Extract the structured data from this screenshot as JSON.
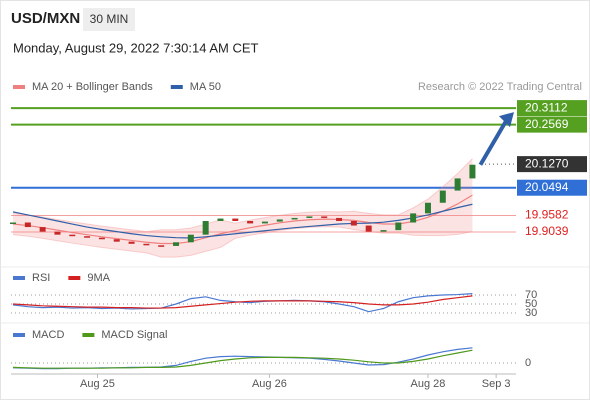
{
  "header": {
    "symbol": "USD/MXN",
    "interval": "30 MIN",
    "timestamp": "Monday, August 29, 2022 7:30:14 AM CET"
  },
  "chart_data": [
    {
      "type": "candlestick",
      "credit": "Research © 2022 Trading Central",
      "xlim": [
        0,
        33.4
      ],
      "ylim": [
        19.815,
        20.351
      ],
      "up_color": "#2e7d32",
      "down_color": "#c62828",
      "values": [
        19.935,
        19.92,
        19.905,
        19.895,
        19.89,
        19.885,
        19.88,
        19.872,
        19.865,
        19.86,
        19.858,
        19.87,
        19.895,
        19.94,
        19.948,
        19.94,
        19.932,
        19.938,
        19.945,
        19.95,
        19.955,
        19.95,
        19.94,
        19.925,
        19.905,
        19.91,
        19.935,
        19.965,
        20.0,
        20.04,
        20.08,
        20.125
      ],
      "series": [
        {
          "name": "MA 20 + Bollinger Bands",
          "color": "#f08080",
          "values": [
            19.93,
            19.925,
            19.918,
            19.91,
            19.902,
            19.895,
            19.888,
            19.882,
            19.876,
            19.87,
            19.866,
            19.866,
            19.872,
            19.885,
            19.898,
            19.908,
            19.918,
            19.926,
            19.934,
            19.94,
            19.944,
            19.946,
            19.945,
            19.942,
            19.935,
            19.93,
            19.93,
            19.938,
            19.952,
            19.972,
            19.996,
            20.025
          ],
          "upper": [
            19.965,
            19.96,
            19.953,
            19.945,
            19.937,
            19.93,
            19.923,
            19.917,
            19.911,
            19.905,
            19.911,
            19.911,
            19.917,
            19.93,
            19.943,
            19.933,
            19.943,
            19.951,
            19.959,
            19.965,
            19.969,
            19.971,
            19.97,
            19.972,
            19.965,
            19.96,
            19.96,
            19.983,
            20.012,
            20.052,
            20.096,
            20.145
          ],
          "lower": [
            19.895,
            19.89,
            19.883,
            19.875,
            19.867,
            19.86,
            19.853,
            19.847,
            19.841,
            19.835,
            19.821,
            19.821,
            19.827,
            19.84,
            19.853,
            19.883,
            19.893,
            19.901,
            19.909,
            19.915,
            19.919,
            19.921,
            19.92,
            19.912,
            19.905,
            19.9,
            19.9,
            19.893,
            19.892,
            19.892,
            19.896,
            19.905
          ]
        },
        {
          "name": "MA 50",
          "color": "#2f5fa8",
          "values": [
            19.97,
            19.96,
            19.95,
            19.94,
            19.93,
            19.92,
            19.912,
            19.905,
            19.898,
            19.892,
            19.888,
            19.885,
            19.884,
            19.888,
            19.893,
            19.898,
            19.903,
            19.908,
            19.913,
            19.918,
            19.922,
            19.926,
            19.93,
            19.932,
            19.933,
            19.936,
            19.942,
            19.95,
            19.96,
            19.972,
            19.984,
            19.995
          ]
        }
      ],
      "levels": [
        {
          "value": 20.3112,
          "label": "20.3112",
          "color": "#55a020",
          "box": "#55a020",
          "style": "solid"
        },
        {
          "value": 20.2569,
          "label": "20.2569",
          "color": "#55a020",
          "box": "#55a020",
          "style": "solid"
        },
        {
          "value": 20.127,
          "label": "20.1270",
          "color": "#555555",
          "box": "#333333",
          "style": "dotted"
        },
        {
          "value": 20.0494,
          "label": "20.0494",
          "color": "#2f6fd6",
          "box": "#2f6fd6",
          "style": "solid"
        },
        {
          "value": 19.9582,
          "label": "19.9582",
          "color": "#f4a0a0",
          "box": null,
          "text_color": "#e02020",
          "style": "solid"
        },
        {
          "value": 19.9039,
          "label": "19.9039",
          "color": "#f4a0a0",
          "box": null,
          "text_color": "#e02020",
          "style": "solid"
        }
      ]
    },
    {
      "type": "line",
      "xlim": [
        0,
        33.4
      ],
      "ylim": [
        0,
        100
      ],
      "yticks": [
        70,
        50,
        30
      ],
      "series": [
        {
          "name": "RSI",
          "color": "#4a78d0",
          "values": [
            48,
            44,
            42,
            43,
            41,
            42,
            40,
            41,
            39,
            40,
            41,
            50,
            62,
            66,
            58,
            55,
            53,
            56,
            57,
            58,
            57,
            55,
            50,
            44,
            33,
            40,
            55,
            64,
            68,
            70,
            71,
            73
          ]
        },
        {
          "name": "9MA",
          "color": "#d42020",
          "values": [
            50,
            48,
            46,
            45,
            44,
            43,
            43,
            42,
            42,
            41,
            41,
            42,
            45,
            48,
            51,
            54,
            56,
            57,
            57,
            57,
            57,
            56,
            55,
            53,
            50,
            48,
            48,
            50,
            54,
            60,
            64,
            68
          ]
        }
      ]
    },
    {
      "type": "line",
      "xlim": [
        0,
        33.4
      ],
      "ylim": [
        -0.025,
        0.055
      ],
      "yticks": [
        0
      ],
      "xticks": [
        {
          "value": 5.7,
          "label": "Aug 25"
        },
        {
          "value": 17.3,
          "label": "Aug 26"
        },
        {
          "value": 28.0,
          "label": "Aug 28"
        },
        {
          "value": 32.6,
          "label": "Sep 3"
        }
      ],
      "series": [
        {
          "name": "MACD",
          "color": "#4a78d0",
          "values": [
            -0.012,
            -0.013,
            -0.014,
            -0.014,
            -0.013,
            -0.013,
            -0.012,
            -0.012,
            -0.011,
            -0.011,
            -0.01,
            -0.006,
            0.004,
            0.012,
            0.016,
            0.017,
            0.016,
            0.015,
            0.014,
            0.013,
            0.012,
            0.009,
            0.005,
            0.0,
            -0.005,
            -0.004,
            0.002,
            0.01,
            0.02,
            0.028,
            0.034,
            0.038
          ]
        },
        {
          "name": "MACD Signal",
          "color": "#4f9a1c",
          "values": [
            -0.011,
            -0.012,
            -0.013,
            -0.013,
            -0.013,
            -0.013,
            -0.013,
            -0.012,
            -0.012,
            -0.011,
            -0.011,
            -0.01,
            -0.006,
            0.0,
            0.006,
            0.01,
            0.013,
            0.014,
            0.014,
            0.014,
            0.013,
            0.012,
            0.01,
            0.007,
            0.003,
            0.0,
            0.0,
            0.004,
            0.01,
            0.018,
            0.025,
            0.032
          ]
        }
      ]
    }
  ]
}
